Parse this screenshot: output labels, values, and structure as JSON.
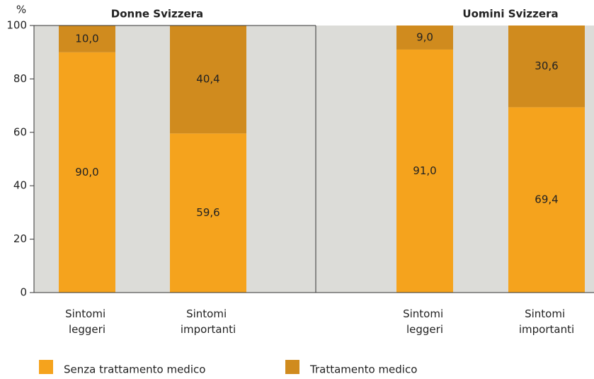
{
  "chart_data": {
    "type": "bar",
    "stacked": true,
    "y_label": "%",
    "ylim": [
      0,
      100
    ],
    "yticks": [
      0,
      20,
      40,
      60,
      80,
      100
    ],
    "panels": [
      {
        "title": "Donne Svizzera",
        "categories": [
          "Sintomi leggeri",
          "Sintomi importanti"
        ]
      },
      {
        "title": "Uomini Svizzera",
        "categories": [
          "Sintomi leggeri",
          "Sintomi importanti"
        ]
      }
    ],
    "series": [
      {
        "name": "Senza trattamento medico",
        "color": "#f5a31d",
        "values": [
          90.0,
          59.6,
          91.0,
          69.4
        ],
        "value_labels": [
          "90,0",
          "59,6",
          "91,0",
          "69,4"
        ]
      },
      {
        "name": "Trattamento medico",
        "color": "#d08b1e",
        "values": [
          10.0,
          40.4,
          9.0,
          30.6
        ],
        "value_labels": [
          "10,0",
          "40,4",
          "9,0",
          "30,6"
        ]
      }
    ]
  }
}
